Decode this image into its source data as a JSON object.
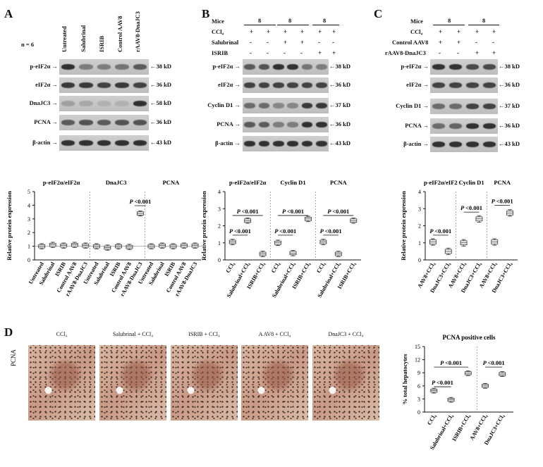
{
  "panels": {
    "A": "A",
    "B": "B",
    "C": "C",
    "D": "D"
  },
  "panelA": {
    "n_label": "n = 6",
    "lanes": [
      "Untreated",
      "Salubrinal",
      "ISRIB",
      "Control AAV8",
      "rAAV8-DnaJC3"
    ],
    "blots": [
      {
        "name": "p-eIF2α",
        "kd": "38 kD"
      },
      {
        "name": "eIF2α",
        "kd": "36 kD"
      },
      {
        "name": "DnaJC3",
        "kd": "58 kD"
      },
      {
        "name": "PCNA",
        "kd": "36 kD"
      },
      {
        "name": "β-actin",
        "kd": "43 kD"
      }
    ]
  },
  "panelB": {
    "header": {
      "mice": "Mice",
      "mice_counts": [
        "8",
        "8",
        "8"
      ],
      "rows": [
        {
          "label": "CCl₄",
          "values": [
            "+",
            "+",
            "+",
            "+",
            "+",
            "+"
          ]
        },
        {
          "label": "Salubrinal",
          "values": [
            "-",
            "-",
            "+",
            "+",
            "-",
            "-"
          ]
        },
        {
          "label": "ISRIB",
          "values": [
            "-",
            "-",
            "-",
            "-",
            "+",
            "+"
          ]
        }
      ]
    },
    "blots": [
      {
        "name": "p-eIF2α",
        "kd": "38 kD"
      },
      {
        "name": "eIF2α",
        "kd": "36 kD"
      },
      {
        "name": "Cyclin D1",
        "kd": "37 kD"
      },
      {
        "name": "PCNA",
        "kd": "36 kD"
      },
      {
        "name": "β-actin",
        "kd": "43 kD"
      }
    ]
  },
  "panelC": {
    "header": {
      "mice": "Mice",
      "mice_counts": [
        "8",
        "8"
      ],
      "rows": [
        {
          "label": "CCl₄",
          "values": [
            "+",
            "+",
            "+",
            "+"
          ]
        },
        {
          "label": "Control  AAV8",
          "values": [
            "+",
            "+",
            "-",
            "-"
          ]
        },
        {
          "label": "rAAV8-DnaJC3",
          "values": [
            "-",
            "-",
            "+",
            "+"
          ]
        }
      ]
    },
    "blots": [
      {
        "name": "p-eIF2α",
        "kd": "38 kD"
      },
      {
        "name": "eIF2α",
        "kd": "36 kD"
      },
      {
        "name": "Cyclin D1",
        "kd": "37 kD"
      },
      {
        "name": "PCNA",
        "kd": "36 kD"
      },
      {
        "name": "β-actin",
        "kd": "43 kD"
      }
    ]
  },
  "panelD": {
    "side_label": "PCNA",
    "images": [
      "CCl₄",
      "Salubrinal + CCl₄",
      "ISRIB + CCl₄",
      "A AV8 + CCl₄",
      "DnaJC3 + CCl₄"
    ]
  },
  "chart_data": [
    {
      "type": "box",
      "ylabel": "Relative protein expression",
      "ylim": [
        0,
        5
      ],
      "yticks": [
        0,
        1,
        2,
        3,
        4,
        5
      ],
      "groups": [
        {
          "title": "p-eIF2α/eIF2α",
          "categories": [
            "Untreated",
            "Salubrinal",
            "ISRIB",
            "Control AAV8",
            "rAAV8-DnaJC3"
          ],
          "values": [
            1.0,
            1.1,
            1.05,
            1.1,
            1.05
          ]
        },
        {
          "title": "DnaJC3",
          "categories": [
            "Untreated",
            "Salubrinal",
            "ISRIB",
            "Control AAV8",
            "rAAV8-DnaJC3"
          ],
          "values": [
            1.0,
            0.9,
            1.0,
            0.95,
            3.4
          ]
        },
        {
          "title": "PCNA",
          "categories": [
            "Untreated",
            "Salubrinal",
            "ISRIB",
            "Control AAV8",
            "rAAV8-DnaJC3"
          ],
          "values": [
            1.0,
            1.05,
            1.0,
            1.05,
            1.05
          ]
        }
      ],
      "annotations": [
        "P <0.001"
      ]
    },
    {
      "type": "box",
      "ylabel": "Relative protein expression",
      "ylim": [
        0,
        4
      ],
      "yticks": [
        0,
        1,
        2,
        3,
        4
      ],
      "groups": [
        {
          "title": "p-eIF2α/eIF2α",
          "categories": [
            "CCl₄",
            "Salubrinal+CCl₄",
            "ISRIB+CCl₄"
          ],
          "values": [
            1.05,
            2.3,
            0.35
          ]
        },
        {
          "title": "Cyclin D1",
          "categories": [
            "CCl₄",
            "Salubrinal+CCl₄",
            "ISRIB+CCl₄"
          ],
          "values": [
            1.0,
            0.4,
            2.4
          ]
        },
        {
          "title": "PCNA",
          "categories": [
            "CCl₄",
            "Salubrinal+CCl₄",
            "ISRIB+CCl₄"
          ],
          "values": [
            1.05,
            0.35,
            2.3
          ]
        }
      ],
      "annotations": [
        "P <0.001",
        "P <0.001",
        "P <0.001",
        "P <0.001",
        "P <0.001",
        "P <0.001"
      ]
    },
    {
      "type": "box",
      "ylabel": "Relative protein expression",
      "ylim": [
        0,
        4
      ],
      "yticks": [
        0,
        1,
        2,
        3,
        4
      ],
      "groups": [
        {
          "title": "p-eIF2α/eIF2",
          "categories": [
            "AAV8+CCl₄",
            "DnaJC3+CCl₄"
          ],
          "values": [
            1.05,
            0.5
          ]
        },
        {
          "title": "Cyclin D1",
          "categories": [
            "AAV8+CCl₄",
            "DnaJC3+CCl₄"
          ],
          "values": [
            1.0,
            2.4
          ]
        },
        {
          "title": "PCNA",
          "categories": [
            "AAV8+CCl₄",
            "DnaJC3+CCl₄"
          ],
          "values": [
            1.05,
            2.75
          ]
        }
      ],
      "annotations": [
        "P <0.001",
        "P <0.001",
        "P <0.001"
      ]
    },
    {
      "type": "box",
      "title": "PCNA positive cells",
      "ylabel": "% total hepatocytes",
      "ylim": [
        0,
        15
      ],
      "yticks": [
        0,
        3,
        6,
        9,
        12,
        15
      ],
      "categories": [
        "CCl₄",
        "Salubrinal+CCl₄",
        "ISRIB+CCl₄",
        "AAV8+CCl₄",
        "DnaJC3+CCl₄"
      ],
      "values": [
        4.9,
        2.8,
        8.9,
        6.0,
        8.7
      ],
      "annotations": [
        "P <0.001",
        "P <0.001",
        "P <0.001"
      ]
    }
  ]
}
